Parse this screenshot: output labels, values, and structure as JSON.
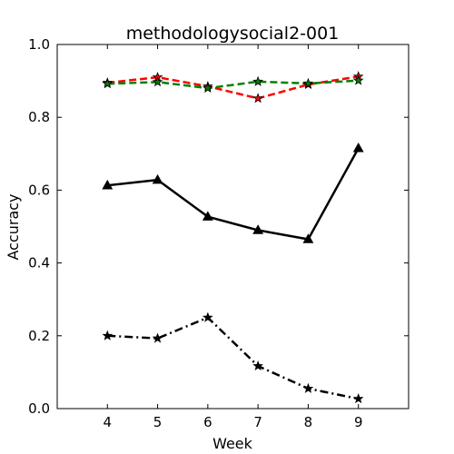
{
  "chart_data": {
    "type": "line",
    "title": "methodologysocial2-001",
    "xlabel": "Week",
    "ylabel": "Accuracy",
    "xlim": [
      3,
      10
    ],
    "ylim": [
      0.0,
      1.0
    ],
    "x_ticks": [
      "4",
      "5",
      "6",
      "7",
      "8",
      "9"
    ],
    "y_ticks": [
      "0.0",
      "0.2",
      "0.4",
      "0.6",
      "0.8",
      "1.0"
    ],
    "grid": false,
    "legend": "none",
    "x": [
      4,
      5,
      6,
      7,
      8,
      9
    ],
    "series": [
      {
        "values": [
          0.613,
          0.628,
          0.527,
          0.49,
          0.465,
          0.715
        ],
        "color": "#000000",
        "style": "solid",
        "marker": "triangle"
      },
      {
        "values": [
          0.2,
          0.193,
          0.25,
          0.117,
          0.055,
          0.027
        ],
        "color": "#000000",
        "style": "dashdot",
        "marker": "star"
      },
      {
        "values": [
          0.895,
          0.91,
          0.885,
          0.852,
          0.89,
          0.912
        ],
        "color": "#ff0000",
        "style": "dashed",
        "marker": "star"
      },
      {
        "values": [
          0.892,
          0.897,
          0.88,
          0.898,
          0.893,
          0.901
        ],
        "color": "#008000",
        "style": "dashed",
        "marker": "star"
      }
    ]
  }
}
